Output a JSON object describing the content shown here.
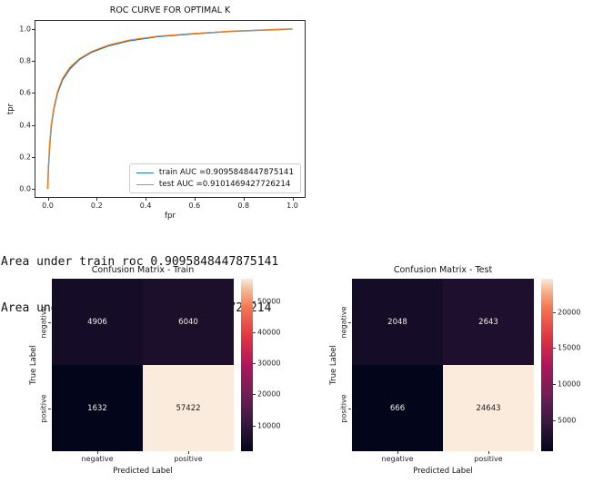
{
  "console": {
    "lines": [
      "Area under train roc 0.9095848447875141",
      "Area under test roc 0.9101469427726214"
    ]
  },
  "chart_data": [
    {
      "type": "line",
      "title": "ROC CURVE FOR OPTIMAL K",
      "xlabel": "fpr",
      "ylabel": "tpr",
      "xlim": [
        -0.05,
        1.05
      ],
      "ylim": [
        -0.05,
        1.05
      ],
      "x_ticks": [
        0.0,
        0.2,
        0.4,
        0.6,
        0.8,
        1.0
      ],
      "y_ticks": [
        0.0,
        0.2,
        0.4,
        0.6,
        0.8,
        1.0
      ],
      "grid": false,
      "legend_position": "lower right",
      "x": [
        0,
        0.003,
        0.008,
        0.015,
        0.025,
        0.04,
        0.06,
        0.09,
        0.13,
        0.18,
        0.25,
        0.33,
        0.45,
        0.6,
        0.75,
        1.0
      ],
      "series": [
        {
          "name": "train AUC =0.9095848447875141",
          "auc": 0.9095848447875141,
          "color": "#1f77b4",
          "values": [
            0,
            0.13,
            0.27,
            0.4,
            0.5,
            0.6,
            0.68,
            0.75,
            0.81,
            0.855,
            0.895,
            0.925,
            0.952,
            0.97,
            0.985,
            1.0
          ]
        },
        {
          "name": "test AUC =0.9101469427726214",
          "auc": 0.9101469427726214,
          "color": "#ff7f0e",
          "values": [
            0,
            0.14,
            0.28,
            0.41,
            0.51,
            0.61,
            0.69,
            0.76,
            0.815,
            0.86,
            0.9,
            0.93,
            0.955,
            0.972,
            0.986,
            1.0
          ]
        }
      ]
    },
    {
      "type": "heatmap",
      "title": "Confusion Matrix - Train",
      "xlabel": "Predicted Label",
      "ylabel": "True Label",
      "x_categories": [
        "negative",
        "positive"
      ],
      "y_categories": [
        "negative",
        "positive"
      ],
      "values": [
        [
          4906,
          6040
        ],
        [
          1632,
          57422
        ]
      ],
      "colormap": "rocket",
      "colorbar_ticks": [
        10000,
        20000,
        30000,
        40000,
        50000
      ]
    },
    {
      "type": "heatmap",
      "title": "Confusion Matrix - Test",
      "xlabel": "Predicted Label",
      "ylabel": "True Label",
      "x_categories": [
        "negative",
        "positive"
      ],
      "y_categories": [
        "negative",
        "positive"
      ],
      "values": [
        [
          2048,
          2643
        ],
        [
          666,
          24643
        ]
      ],
      "colormap": "rocket",
      "colorbar_ticks": [
        5000,
        10000,
        15000,
        20000
      ]
    }
  ]
}
